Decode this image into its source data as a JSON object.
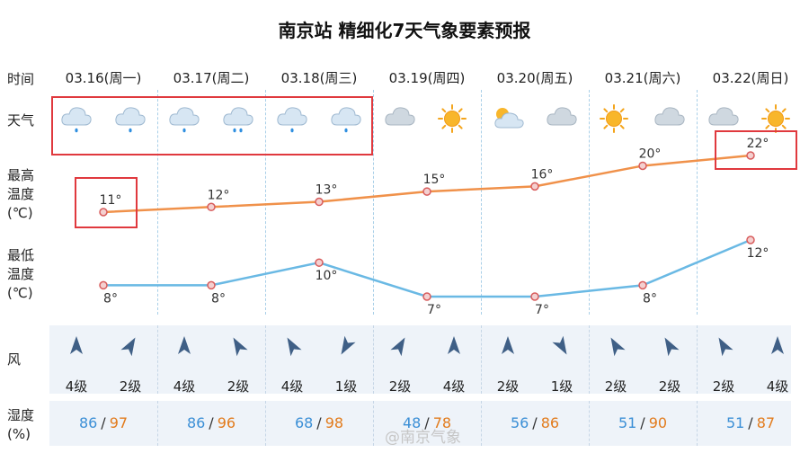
{
  "title": "南京站 精细化7天气象要素预报",
  "row_labels": {
    "time": "时间",
    "weather": "天气",
    "high": [
      "最高",
      "温度",
      "(℃)"
    ],
    "low": [
      "最低",
      "温度",
      "(℃)"
    ],
    "wind": "风",
    "humidity": [
      "湿度",
      "(%)"
    ]
  },
  "days": [
    {
      "date": "03.16(周一)",
      "weather": [
        "cloud-rain-icon",
        "cloud-rain-icon"
      ],
      "wind_level": [
        "4级",
        "2级"
      ],
      "wind_dir": [
        270,
        300
      ],
      "humidity": [
        "86",
        "97"
      ]
    },
    {
      "date": "03.17(周二)",
      "weather": [
        "cloud-rain-icon",
        "cloud-heavy-rain-icon"
      ],
      "wind_level": [
        "4级",
        "2级"
      ],
      "wind_dir": [
        270,
        240
      ],
      "humidity": [
        "86",
        "96"
      ]
    },
    {
      "date": "03.18(周三)",
      "weather": [
        "cloud-rain-icon",
        "cloud-rain-icon"
      ],
      "wind_level": [
        "4级",
        "1级"
      ],
      "wind_dir": [
        240,
        120
      ],
      "humidity": [
        "68",
        "98"
      ]
    },
    {
      "date": "03.19(周四)",
      "weather": [
        "cloud-icon",
        "sun-icon"
      ],
      "wind_level": [
        "2级",
        "4级"
      ],
      "wind_dir": [
        300,
        270
      ],
      "humidity": [
        "48",
        "78"
      ]
    },
    {
      "date": "03.20(周五)",
      "weather": [
        "partly-cloudy-icon",
        "cloud-icon"
      ],
      "wind_level": [
        "2级",
        "1级"
      ],
      "wind_dir": [
        270,
        60
      ],
      "humidity": [
        "56",
        "86"
      ]
    },
    {
      "date": "03.21(周六)",
      "weather": [
        "sun-icon",
        "cloud-icon"
      ],
      "wind_level": [
        "2级",
        "2级"
      ],
      "wind_dir": [
        240,
        240
      ],
      "humidity": [
        "51",
        "90"
      ]
    },
    {
      "date": "03.22(周日)",
      "weather": [
        "cloud-icon",
        "sun-icon"
      ],
      "wind_level": [
        "2级",
        "4级"
      ],
      "wind_dir": [
        240,
        270
      ],
      "humidity": [
        "51",
        "87"
      ]
    }
  ],
  "chart_data": [
    {
      "type": "line",
      "categories": [
        "03.16(周一)",
        "03.17(周二)",
        "03.18(周三)",
        "03.19(周四)",
        "03.20(周五)",
        "03.21(周六)",
        "03.22(周日)"
      ],
      "series": [
        {
          "values": [
            11,
            12,
            13,
            15,
            16,
            20,
            22
          ],
          "color": "#f0914a"
        }
      ],
      "value_labels": [
        "11°",
        "12°",
        "13°",
        "15°",
        "16°",
        "20°",
        "22°"
      ]
    },
    {
      "type": "line",
      "categories": [
        "03.16(周一)",
        "03.17(周二)",
        "03.18(周三)",
        "03.19(周四)",
        "03.20(周五)",
        "03.21(周六)",
        "03.22(周日)"
      ],
      "series": [
        {
          "values": [
            8,
            8,
            10,
            7,
            7,
            8,
            12
          ],
          "color": "#6ab9e4"
        }
      ],
      "value_labels": [
        "8°",
        "8°",
        "10°",
        "7°",
        "7°",
        "8°",
        "12°"
      ]
    }
  ],
  "colors": {
    "high_line": "#f0914a",
    "low_line": "#6ab9e4",
    "highlight_box": "#e0393e",
    "humidity_first": "#3b8fd6",
    "humidity_second": "#e27b1c"
  },
  "watermark": "@南京气象"
}
